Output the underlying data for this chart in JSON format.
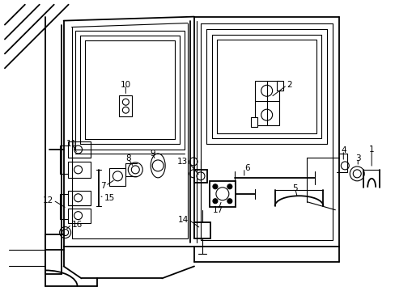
{
  "background_color": "#ffffff",
  "line_color": "#000000",
  "label_color": "#000000",
  "label_fontsize": 7.5,
  "fig_width": 4.89,
  "fig_height": 3.6,
  "dpi": 100
}
